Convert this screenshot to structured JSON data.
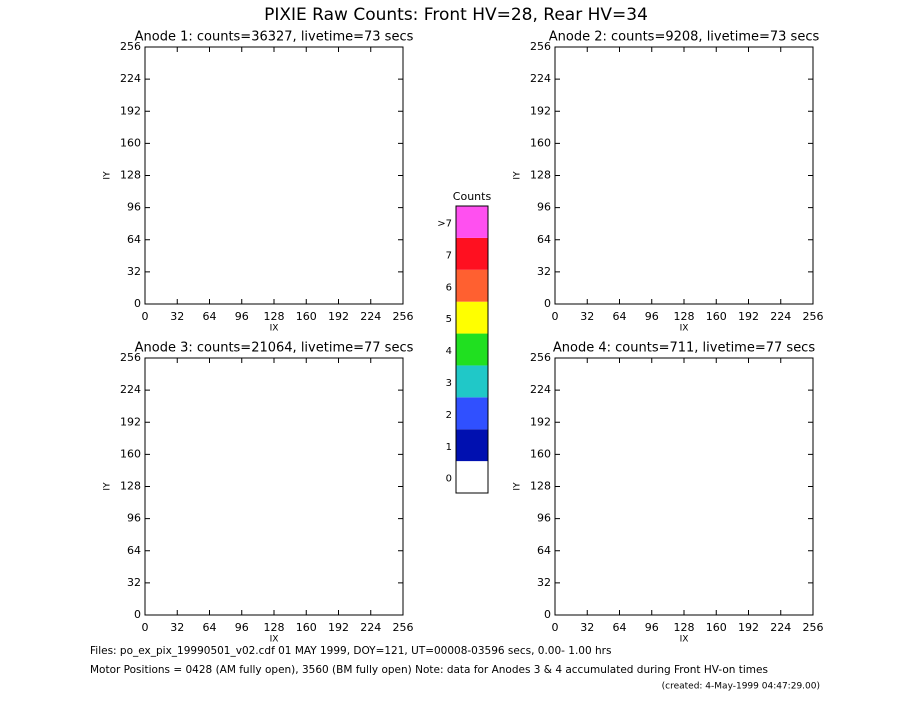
{
  "title": "PIXIE Raw Counts:  Front HV=28, Rear HV=34",
  "chart_data": [
    {
      "type": "heatmap",
      "title": "Anode 1: counts=36327, livetime=73 secs",
      "xlabel": "IX",
      "ylabel": "IY",
      "xlim": [
        0,
        256
      ],
      "ylim": [
        0,
        256
      ],
      "xticks": [
        0,
        32,
        64,
        96,
        128,
        160,
        192,
        224,
        256
      ],
      "yticks": [
        0,
        32,
        64,
        96,
        128,
        160,
        192,
        224,
        256
      ]
    },
    {
      "type": "heatmap",
      "title": "Anode 2: counts=9208, livetime=73 secs",
      "xlabel": "IX",
      "ylabel": "IY",
      "xlim": [
        0,
        256
      ],
      "ylim": [
        0,
        256
      ],
      "xticks": [
        0,
        32,
        64,
        96,
        128,
        160,
        192,
        224,
        256
      ],
      "yticks": [
        0,
        32,
        64,
        96,
        128,
        160,
        192,
        224,
        256
      ]
    },
    {
      "type": "heatmap",
      "title": "Anode 3: counts=21064, livetime=77 secs",
      "xlabel": "IX",
      "ylabel": "IY",
      "xlim": [
        0,
        256
      ],
      "ylim": [
        0,
        256
      ],
      "xticks": [
        0,
        32,
        64,
        96,
        128,
        160,
        192,
        224,
        256
      ],
      "yticks": [
        0,
        32,
        64,
        96,
        128,
        160,
        192,
        224,
        256
      ]
    },
    {
      "type": "heatmap",
      "title": "Anode 4: counts=711, livetime=77 secs",
      "xlabel": "IX",
      "ylabel": "IY",
      "xlim": [
        0,
        256
      ],
      "ylim": [
        0,
        256
      ],
      "xticks": [
        0,
        32,
        64,
        96,
        128,
        160,
        192,
        224,
        256
      ],
      "yticks": [
        0,
        32,
        64,
        96,
        128,
        160,
        192,
        224,
        256
      ]
    }
  ],
  "colorbar": {
    "title": "Counts",
    "labels": [
      "0",
      "1",
      "2",
      "3",
      "4",
      "5",
      "6",
      "7",
      ">7"
    ],
    "colors": [
      "#ffffff",
      "#0010b0",
      "#3050ff",
      "#20c8c8",
      "#20e020",
      "#ffff00",
      "#ff6030",
      "#ff1020",
      "#ff50f0"
    ]
  },
  "footer": [
    "Files: po_ex_pix_19990501_v02.cdf    01 MAY 1999, DOY=121, UT=00008-03596 secs,  0.00- 1.00 hrs",
    "Motor Positions = 0428 (AM fully open), 3560 (BM fully open)    Note: data for Anodes 3 & 4 accumulated during Front HV-on times",
    "(created:  4-May-1999 04:47:29.00)"
  ]
}
